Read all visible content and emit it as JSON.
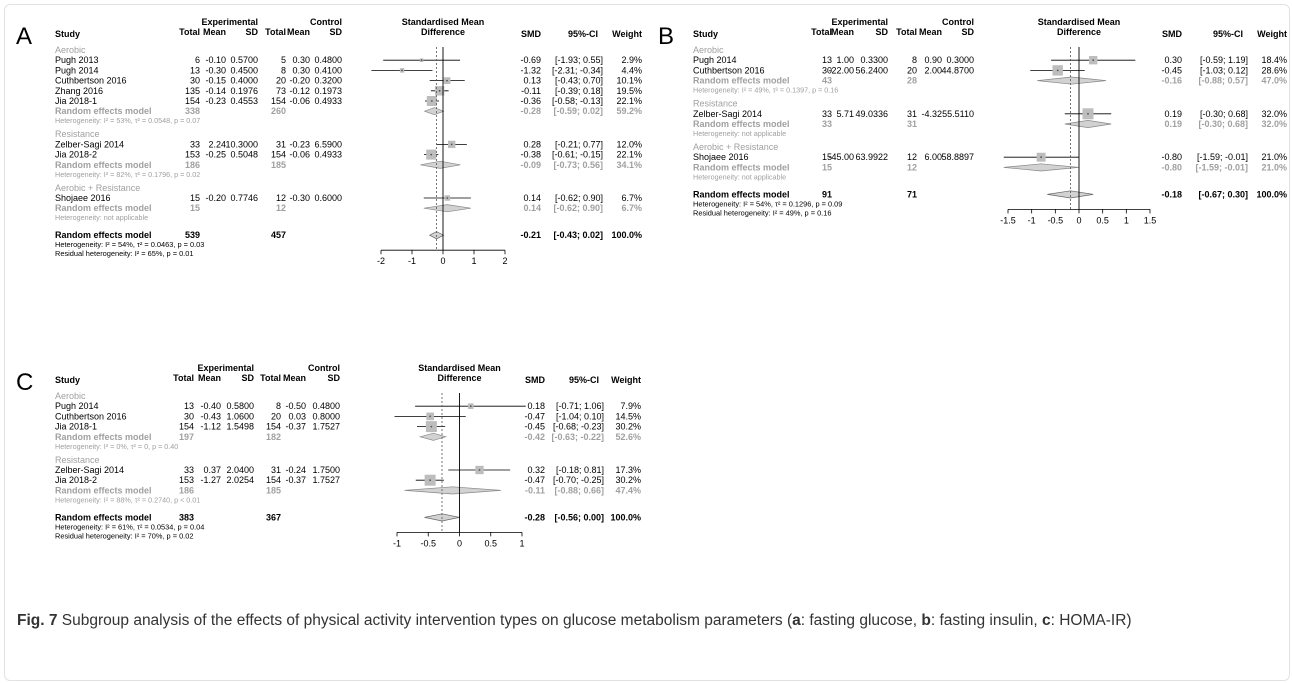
{
  "figure": {
    "caption": {
      "label": "Fig. 7",
      "parts": [
        {
          "t": " Subgroup analysis of the effects of physical activity intervention types on glucose metabolism parameters (",
          "b": false
        },
        {
          "t": "a",
          "b": true
        },
        {
          "t": ": fasting glucose, ",
          "b": false
        },
        {
          "t": "b",
          "b": true
        },
        {
          "t": ": fasting insulin, ",
          "b": false
        },
        {
          "t": "c",
          "b": true
        },
        {
          "t": ": HOMA-IR)",
          "b": false
        }
      ]
    },
    "column_headers": {
      "study": "Study",
      "experimental": "Experimental",
      "control": "Control",
      "total": "Total",
      "mean": "Mean",
      "sd": "SD",
      "effect_line1": "Standardised Mean",
      "effect_line2": "Difference",
      "smd": "SMD",
      "ci": "95%-CI",
      "weight": "Weight"
    },
    "colors": {
      "text": "#000000",
      "pooled_grey": "#a0a0a0",
      "box": "#bdbdbd",
      "frame": "#e2e2e2"
    }
  },
  "chart_data": [
    {
      "type": "forest",
      "panel_label": "A",
      "xlim": [
        -2,
        2
      ],
      "ticks": [
        -2,
        -1,
        0,
        1,
        2
      ],
      "pooled_effect": -0.21,
      "subgroups": [
        {
          "name": "Aerobic",
          "studies": [
            {
              "study": "Pugh 2013",
              "e_total": "6",
              "e_mean": "-0.10",
              "e_sd": "0.5700",
              "c_total": "5",
              "c_mean": "0.30",
              "c_sd": "0.4800",
              "smd": -0.69,
              "lo": -1.93,
              "hi": 0.55,
              "smd_text": "-0.69",
              "ci_text": "[-1.93; 0.55]",
              "weight": 2.9,
              "weight_text": "2.9%"
            },
            {
              "study": "Pugh 2014",
              "e_total": "13",
              "e_mean": "-0.30",
              "e_sd": "0.4500",
              "c_total": "8",
              "c_mean": "0.30",
              "c_sd": "0.4100",
              "smd": -1.32,
              "lo": -2.31,
              "hi": -0.34,
              "smd_text": "-1.32",
              "ci_text": "[-2.31; -0.34]",
              "weight": 4.4,
              "weight_text": "4.4%"
            },
            {
              "study": "Cuthbertson 2016",
              "e_total": "30",
              "e_mean": "-0.15",
              "e_sd": "0.4000",
              "c_total": "20",
              "c_mean": "-0.20",
              "c_sd": "0.3200",
              "smd": 0.13,
              "lo": -0.43,
              "hi": 0.7,
              "smd_text": "0.13",
              "ci_text": "[-0.43; 0.70]",
              "weight": 10.1,
              "weight_text": "10.1%"
            },
            {
              "study": "Zhang 2016",
              "e_total": "135",
              "e_mean": "-0.14",
              "e_sd": "0.1976",
              "c_total": "73",
              "c_mean": "-0.12",
              "c_sd": "0.1973",
              "smd": -0.11,
              "lo": -0.39,
              "hi": 0.18,
              "smd_text": "-0.11",
              "ci_text": "[-0.39; 0.18]",
              "weight": 19.5,
              "weight_text": "19.5%"
            },
            {
              "study": "Jia 2018-1",
              "e_total": "154",
              "e_mean": "-0.23",
              "e_sd": "0.4553",
              "c_total": "154",
              "c_mean": "-0.06",
              "c_sd": "0.4933",
              "smd": -0.36,
              "lo": -0.58,
              "hi": -0.13,
              "smd_text": "-0.36",
              "ci_text": "[-0.58; -0.13]",
              "weight": 22.1,
              "weight_text": "22.1%"
            }
          ],
          "model": {
            "label": "Random effects model",
            "e_total": "338",
            "c_total": "260",
            "smd": -0.28,
            "lo": -0.59,
            "hi": 0.02,
            "smd_text": "-0.28",
            "ci_text": "[-0.59; 0.02]",
            "weight_text": "59.2%"
          },
          "heterogeneity": "Heterogeneity: I² = 53%, τ² = 0.0548, p = 0.07"
        },
        {
          "name": "Resistance",
          "studies": [
            {
              "study": "Zelber-Sagi 2014",
              "e_total": "33",
              "e_mean": "2.24",
              "e_sd": "10.3000",
              "c_total": "31",
              "c_mean": "-0.23",
              "c_sd": "6.5900",
              "smd": 0.28,
              "lo": -0.21,
              "hi": 0.77,
              "smd_text": "0.28",
              "ci_text": "[-0.21; 0.77]",
              "weight": 12.0,
              "weight_text": "12.0%"
            },
            {
              "study": "Jia 2018-2",
              "e_total": "153",
              "e_mean": "-0.25",
              "e_sd": "0.5048",
              "c_total": "154",
              "c_mean": "-0.06",
              "c_sd": "0.4933",
              "smd": -0.38,
              "lo": -0.61,
              "hi": -0.15,
              "smd_text": "-0.38",
              "ci_text": "[-0.61; -0.15]",
              "weight": 22.1,
              "weight_text": "22.1%"
            }
          ],
          "model": {
            "label": "Random effects model",
            "e_total": "186",
            "c_total": "185",
            "smd": -0.09,
            "lo": -0.73,
            "hi": 0.56,
            "smd_text": "-0.09",
            "ci_text": "[-0.73; 0.56]",
            "weight_text": "34.1%"
          },
          "heterogeneity": "Heterogeneity: I² = 82%, τ² = 0.1796, p = 0.02"
        },
        {
          "name": "Aerobic + Resistance",
          "studies": [
            {
              "study": "Shojaee 2016",
              "e_total": "15",
              "e_mean": "-0.20",
              "e_sd": "0.7746",
              "c_total": "12",
              "c_mean": "-0.30",
              "c_sd": "0.6000",
              "smd": 0.14,
              "lo": -0.62,
              "hi": 0.9,
              "smd_text": "0.14",
              "ci_text": "[-0.62; 0.90]",
              "weight": 6.7,
              "weight_text": "6.7%"
            }
          ],
          "model": {
            "label": "Random effects model",
            "e_total": "15",
            "c_total": "12",
            "smd": 0.14,
            "lo": -0.62,
            "hi": 0.9,
            "smd_text": "0.14",
            "ci_text": "[-0.62; 0.90]",
            "weight_text": "6.7%"
          },
          "heterogeneity": "Heterogeneity: not applicable"
        }
      ],
      "overall": {
        "label": "Random effects model",
        "e_total": "539",
        "c_total": "457",
        "smd": -0.21,
        "lo": -0.43,
        "hi": 0.02,
        "smd_text": "-0.21",
        "ci_text": "[-0.43; 0.02]",
        "weight_text": "100.0%"
      },
      "footnotes": [
        "Heterogeneity: I² = 54%, τ² = 0.0463, p = 0.03",
        "Residual heterogeneity: I² = 65%, p = 0.01"
      ]
    },
    {
      "type": "forest",
      "panel_label": "B",
      "xlim": [
        -1.5,
        1.5
      ],
      "ticks": [
        -1.5,
        -1,
        -0.5,
        0,
        0.5,
        1,
        1.5
      ],
      "pooled_effect": -0.18,
      "subgroups": [
        {
          "name": "Aerobic",
          "studies": [
            {
              "study": "Pugh 2014",
              "e_total": "13",
              "e_mean": "1.00",
              "e_sd": "0.3300",
              "c_total": "8",
              "c_mean": "0.90",
              "c_sd": "0.3000",
              "smd": 0.3,
              "lo": -0.59,
              "hi": 1.19,
              "smd_text": "0.30",
              "ci_text": "[-0.59; 1.19]",
              "weight": 18.4,
              "weight_text": "18.4%"
            },
            {
              "study": "Cuthbertson 2016",
              "e_total": "30",
              "e_mean": "-22.00",
              "e_sd": "56.2400",
              "c_total": "20",
              "c_mean": "2.00",
              "c_sd": "44.8700",
              "smd": -0.45,
              "lo": -1.03,
              "hi": 0.12,
              "smd_text": "-0.45",
              "ci_text": "[-1.03; 0.12]",
              "weight": 28.6,
              "weight_text": "28.6%"
            }
          ],
          "model": {
            "label": "Random effects model",
            "e_total": "43",
            "c_total": "28",
            "smd": -0.16,
            "lo": -0.88,
            "hi": 0.57,
            "smd_text": "-0.16",
            "ci_text": "[-0.88; 0.57]",
            "weight_text": "47.0%"
          },
          "heterogeneity": "Heterogeneity: I² = 49%, τ² = 0.1397, p = 0.16"
        },
        {
          "name": "Resistance",
          "studies": [
            {
              "study": "Zelber-Sagi 2014",
              "e_total": "33",
              "e_mean": "5.71",
              "e_sd": "49.0336",
              "c_total": "31",
              "c_mean": "-4.32",
              "c_sd": "55.5110",
              "smd": 0.19,
              "lo": -0.3,
              "hi": 0.68,
              "smd_text": "0.19",
              "ci_text": "[-0.30; 0.68]",
              "weight": 32.0,
              "weight_text": "32.0%"
            }
          ],
          "model": {
            "label": "Random effects model",
            "e_total": "33",
            "c_total": "31",
            "smd": 0.19,
            "lo": -0.3,
            "hi": 0.68,
            "smd_text": "0.19",
            "ci_text": "[-0.30; 0.68]",
            "weight_text": "32.0%"
          },
          "heterogeneity": "Heterogeneity: not applicable"
        },
        {
          "name": "Aerobic + Resistance",
          "studies": [
            {
              "study": "Shojaee 2016",
              "e_total": "15",
              "e_mean": "-45.00",
              "e_sd": "63.9922",
              "c_total": "12",
              "c_mean": "6.00",
              "c_sd": "58.8897",
              "smd": -0.8,
              "lo": -1.59,
              "hi": -0.01,
              "smd_text": "-0.80",
              "ci_text": "[-1.59; -0.01]",
              "weight": 21.0,
              "weight_text": "21.0%"
            }
          ],
          "model": {
            "label": "Random effects model",
            "e_total": "15",
            "c_total": "12",
            "smd": -0.8,
            "lo": -1.59,
            "hi": -0.01,
            "smd_text": "-0.80",
            "ci_text": "[-1.59; -0.01]",
            "weight_text": "21.0%"
          },
          "heterogeneity": "Heterogeneity: not applicable"
        }
      ],
      "overall": {
        "label": "Random effects model",
        "e_total": "91",
        "c_total": "71",
        "smd": -0.18,
        "lo": -0.67,
        "hi": 0.3,
        "smd_text": "-0.18",
        "ci_text": "[-0.67; 0.30]",
        "weight_text": "100.0%"
      },
      "footnotes": [
        "Heterogeneity: I² = 54%, τ² = 0.1296, p = 0.09",
        "Residual heterogeneity: I² = 49%, p = 0.16"
      ]
    },
    {
      "type": "forest",
      "panel_label": "C",
      "xlim": [
        -1,
        1
      ],
      "ticks": [
        -1,
        -0.5,
        0,
        0.5,
        1
      ],
      "pooled_effect": -0.28,
      "subgroups": [
        {
          "name": "Aerobic",
          "studies": [
            {
              "study": "Pugh 2014",
              "e_total": "13",
              "e_mean": "-0.40",
              "e_sd": "0.5800",
              "c_total": "8",
              "c_mean": "-0.50",
              "c_sd": "0.4800",
              "smd": 0.18,
              "lo": -0.71,
              "hi": 1.06,
              "smd_text": "0.18",
              "ci_text": "[-0.71; 1.06]",
              "weight": 7.9,
              "weight_text": "7.9%"
            },
            {
              "study": "Cuthbertson 2016",
              "e_total": "30",
              "e_mean": "-0.43",
              "e_sd": "1.0600",
              "c_total": "20",
              "c_mean": "0.03",
              "c_sd": "0.8000",
              "smd": -0.47,
              "lo": -1.04,
              "hi": 0.1,
              "smd_text": "-0.47",
              "ci_text": "[-1.04; 0.10]",
              "weight": 14.5,
              "weight_text": "14.5%"
            },
            {
              "study": "Jia 2018-1",
              "e_total": "154",
              "e_mean": "-1.12",
              "e_sd": "1.5498",
              "c_total": "154",
              "c_mean": "-0.37",
              "c_sd": "1.7527",
              "smd": -0.45,
              "lo": -0.68,
              "hi": -0.23,
              "smd_text": "-0.45",
              "ci_text": "[-0.68; -0.23]",
              "weight": 30.2,
              "weight_text": "30.2%"
            }
          ],
          "model": {
            "label": "Random effects model",
            "e_total": "197",
            "c_total": "182",
            "smd": -0.42,
            "lo": -0.63,
            "hi": -0.22,
            "smd_text": "-0.42",
            "ci_text": "[-0.63; -0.22]",
            "weight_text": "52.6%"
          },
          "heterogeneity": "Heterogeneity: I² = 0%, τ² = 0, p = 0.40"
        },
        {
          "name": "Resistance",
          "studies": [
            {
              "study": "Zelber-Sagi 2014",
              "e_total": "33",
              "e_mean": "0.37",
              "e_sd": "2.0400",
              "c_total": "31",
              "c_mean": "-0.24",
              "c_sd": "1.7500",
              "smd": 0.32,
              "lo": -0.18,
              "hi": 0.81,
              "smd_text": "0.32",
              "ci_text": "[-0.18; 0.81]",
              "weight": 17.3,
              "weight_text": "17.3%"
            },
            {
              "study": "Jia 2018-2",
              "e_total": "153",
              "e_mean": "-1.27",
              "e_sd": "2.0254",
              "c_total": "154",
              "c_mean": "-0.37",
              "c_sd": "1.7527",
              "smd": -0.47,
              "lo": -0.7,
              "hi": -0.25,
              "smd_text": "-0.47",
              "ci_text": "[-0.70; -0.25]",
              "weight": 30.2,
              "weight_text": "30.2%"
            }
          ],
          "model": {
            "label": "Random effects model",
            "e_total": "186",
            "c_total": "185",
            "smd": -0.11,
            "lo": -0.88,
            "hi": 0.66,
            "smd_text": "-0.11",
            "ci_text": "[-0.88; 0.66]",
            "weight_text": "47.4%"
          },
          "heterogeneity": "Heterogeneity: I² = 88%, τ² = 0.2740, p < 0.01"
        }
      ],
      "overall": {
        "label": "Random effects model",
        "e_total": "383",
        "c_total": "367",
        "smd": -0.28,
        "lo": -0.56,
        "hi": 0.0,
        "smd_text": "-0.28",
        "ci_text": "[-0.56; 0.00]",
        "weight_text": "100.0%"
      },
      "footnotes": [
        "Heterogeneity: I² = 61%, τ² = 0.0534, p = 0.04",
        "Residual heterogeneity: I² = 70%, p = 0.02"
      ]
    }
  ]
}
